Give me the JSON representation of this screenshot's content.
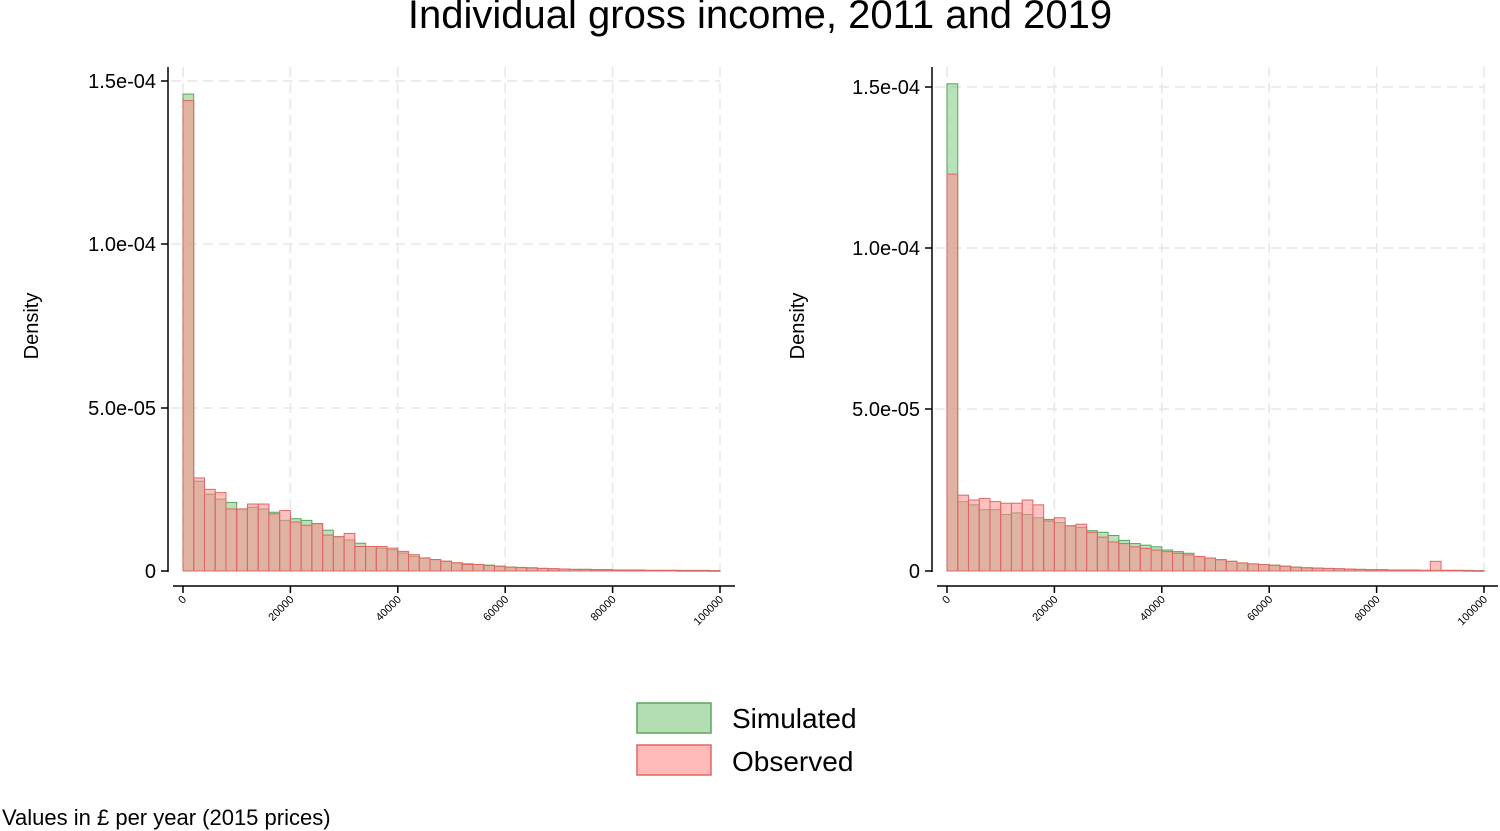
{
  "title": "Individual gross income, 2011 and 2019",
  "note": "Values in £ per year (2015 prices)",
  "legend": [
    {
      "label": "Simulated",
      "color": "#80c882"
    },
    {
      "label": "Observed",
      "color": "#ff8c8c"
    }
  ],
  "colors": {
    "simulated": "#80c882",
    "observed": "#ff8c8c",
    "simulated_edge": "#5aa55c",
    "observed_edge": "#e06666",
    "grid": "#e6e6e6"
  },
  "chart_data": [
    {
      "type": "bar",
      "subtype": "overlaid-histogram",
      "ylabel": "Density",
      "xlabel": "",
      "xlim": [
        0,
        100000
      ],
      "ylim": [
        0,
        0.00015
      ],
      "bin_width": 2000,
      "x_ticks": [
        "0",
        "20000",
        "40000",
        "60000",
        "80000",
        "100000"
      ],
      "x_tick_values": [
        0,
        20000,
        40000,
        60000,
        80000,
        100000
      ],
      "y_ticks": [
        "0",
        "5.0e-05",
        "1.0e-04",
        "1.5e-04"
      ],
      "y_tick_values": [
        0,
        5e-05,
        0.0001,
        0.00015
      ],
      "grid": true,
      "series": [
        {
          "name": "Simulated",
          "values": [
            0.000146,
            2.75e-05,
            2.35e-05,
            2.2e-05,
            2.1e-05,
            1.9e-05,
            1.95e-05,
            1.9e-05,
            1.8e-05,
            1.55e-05,
            1.6e-05,
            1.55e-05,
            1.45e-05,
            1.25e-05,
            1.05e-05,
            9.5e-06,
            8.5e-06,
            7.5e-06,
            7e-06,
            6.5e-06,
            5.5e-06,
            4.5e-06,
            4e-06,
            3.5e-06,
            3e-06,
            2.5e-06,
            2.2e-06,
            2e-06,
            1.8e-06,
            1.4e-06,
            1.2e-06,
            1e-06,
            9e-07,
            8e-07,
            7e-07,
            6e-07,
            5e-07,
            5e-07,
            4e-07,
            4e-07,
            3e-07,
            3e-07,
            3e-07,
            2e-07,
            2e-07,
            2e-07,
            2e-07,
            2e-07,
            2e-07,
            1e-07
          ]
        },
        {
          "name": "Observed",
          "values": [
            0.000144,
            2.85e-05,
            2.5e-05,
            2.4e-05,
            1.9e-05,
            1.9e-05,
            2.05e-05,
            2.05e-05,
            1.75e-05,
            1.85e-05,
            1.5e-05,
            1.4e-05,
            1.45e-05,
            1.1e-05,
            1.05e-05,
            1.15e-05,
            7.5e-06,
            7.5e-06,
            7.5e-06,
            7e-06,
            6e-06,
            5e-06,
            4e-06,
            3.5e-06,
            3e-06,
            2.5e-06,
            2e-06,
            2e-06,
            1.7e-06,
            1.5e-06,
            1.2e-06,
            1.1e-06,
            1e-06,
            8e-07,
            7e-07,
            6e-07,
            5e-07,
            5e-07,
            4e-07,
            4e-07,
            3e-07,
            3e-07,
            2e-07,
            2e-07,
            2e-07,
            2e-07,
            1e-07,
            1e-07,
            1e-07,
            1e-07
          ]
        }
      ]
    },
    {
      "type": "bar",
      "subtype": "overlaid-histogram",
      "ylabel": "Density",
      "xlabel": "",
      "xlim": [
        0,
        100000
      ],
      "ylim": [
        0,
        0.00015
      ],
      "bin_width": 2000,
      "x_ticks": [
        "0",
        "20000",
        "40000",
        "60000",
        "80000",
        "100000"
      ],
      "x_tick_values": [
        0,
        20000,
        40000,
        60000,
        80000,
        100000
      ],
      "y_ticks": [
        "0",
        "5.0e-05",
        "1.0e-04",
        "1.5e-04"
      ],
      "y_tick_values": [
        0,
        5e-05,
        0.0001,
        0.00015
      ],
      "grid": true,
      "series": [
        {
          "name": "Simulated",
          "values": [
            0.000151,
            2.15e-05,
            2.05e-05,
            1.9e-05,
            1.9e-05,
            1.75e-05,
            1.8e-05,
            1.75e-05,
            1.65e-05,
            1.6e-05,
            1.5e-05,
            1.4e-05,
            1.35e-05,
            1.25e-05,
            1.2e-05,
            1.1e-05,
            9.5e-06,
            8.5e-06,
            8e-06,
            7.5e-06,
            6.5e-06,
            6e-06,
            5.5e-06,
            4.5e-06,
            4e-06,
            3.5e-06,
            3e-06,
            2.5e-06,
            2.2e-06,
            2e-06,
            1.8e-06,
            1.5e-06,
            1.2e-06,
            1e-06,
            9e-07,
            8e-07,
            7e-07,
            6e-07,
            5e-07,
            4e-07,
            4e-07,
            3e-07,
            3e-07,
            3e-07,
            2e-07,
            2e-07,
            2e-07,
            2e-07,
            2e-07,
            1e-07
          ]
        },
        {
          "name": "Observed",
          "values": [
            0.000123,
            2.35e-05,
            2.2e-05,
            2.25e-05,
            2.15e-05,
            2.1e-05,
            2.1e-05,
            2.2e-05,
            2.05e-05,
            1.55e-05,
            1.65e-05,
            1.4e-05,
            1.45e-05,
            1.2e-05,
            1.05e-05,
            9e-06,
            8.5e-06,
            7.5e-06,
            7e-06,
            6.5e-06,
            6e-06,
            5.5e-06,
            5e-06,
            4.5e-06,
            4e-06,
            3.5e-06,
            3e-06,
            2.5e-06,
            2.2e-06,
            2e-06,
            1.8e-06,
            1.5e-06,
            1.2e-06,
            1e-06,
            9e-07,
            8e-07,
            7e-07,
            6e-07,
            5e-07,
            4e-07,
            4e-07,
            3e-07,
            3e-07,
            3e-07,
            2e-07,
            3e-06,
            2e-07,
            2e-07,
            1e-07,
            1e-07
          ]
        }
      ]
    }
  ]
}
